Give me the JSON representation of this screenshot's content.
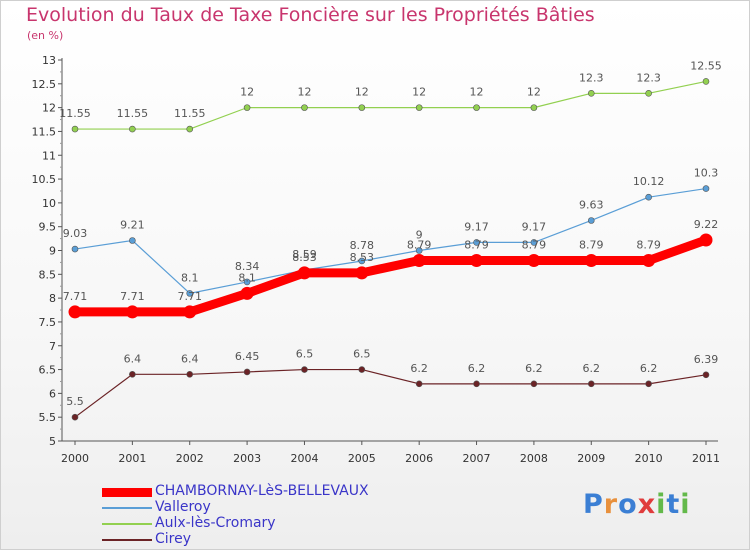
{
  "title": "Evolution du Taux de Taxe Foncière sur les Propriétés Bâties",
  "subtitle": "(en %)",
  "chart_data": {
    "type": "line",
    "title": "Evolution du Taux de Taxe Foncière sur les Propriétés Bâties",
    "ylabel": "(en %)",
    "xlabel": "",
    "x": [
      "2000",
      "2001",
      "2002",
      "2003",
      "2004",
      "2005",
      "2006",
      "2007",
      "2008",
      "2009",
      "2010",
      "2011"
    ],
    "ylim": [
      5,
      13
    ],
    "yticks": [
      "5",
      "5.5",
      "6",
      "6.5",
      "7",
      "7.5",
      "8",
      "8.5",
      "9",
      "9.5",
      "10",
      "10.5",
      "11",
      "11.5",
      "12",
      "12.5",
      "13"
    ],
    "grid": false,
    "legend_position": "bottom-left",
    "series": [
      {
        "name": "CHAMBORNAY-LèS-BELLEVAUX",
        "color": "#ff0000",
        "values": [
          7.71,
          7.71,
          7.71,
          8.1,
          8.53,
          8.53,
          8.79,
          8.79,
          8.79,
          8.79,
          8.79,
          9.22
        ],
        "labels": [
          "7.71",
          "7.71",
          "7.71",
          "8.1",
          "8.53",
          "8.53",
          "8.79",
          "8.79",
          "8.79",
          "8.79",
          "8.79",
          "9.22"
        ]
      },
      {
        "name": "Valleroy",
        "color": "#5a9ed6",
        "values": [
          9.03,
          9.21,
          8.1,
          8.34,
          8.59,
          8.78,
          9,
          9.17,
          9.17,
          9.63,
          10.12,
          10.3
        ],
        "labels": [
          "9.03",
          "9.21",
          "8.1",
          "8.34",
          "8.59",
          "8.78",
          "9",
          "9.17",
          "9.17",
          "9.63",
          "10.12",
          "10.3"
        ]
      },
      {
        "name": "Aulx-lès-Cromary",
        "color": "#92d050",
        "values": [
          11.55,
          11.55,
          11.55,
          12,
          12,
          12,
          12,
          12,
          12,
          12.3,
          12.3,
          12.55
        ],
        "labels": [
          "11.55",
          "11.55",
          "11.55",
          "12",
          "12",
          "12",
          "12",
          "12",
          "12",
          "12.3",
          "12.3",
          "12.55"
        ]
      },
      {
        "name": "Cirey",
        "color": "#6b2326",
        "values": [
          5.5,
          6.4,
          6.4,
          6.45,
          6.5,
          6.5,
          6.2,
          6.2,
          6.2,
          6.2,
          6.2,
          6.39
        ],
        "labels": [
          "5.5",
          "6.4",
          "6.4",
          "6.45",
          "6.5",
          "6.5",
          "6.2",
          "6.2",
          "6.2",
          "6.2",
          "6.2",
          "6.39"
        ]
      }
    ]
  },
  "logo": {
    "letters": [
      {
        "char": "P",
        "color": "#3b7fd4"
      },
      {
        "char": "r",
        "color": "#e8903c"
      },
      {
        "char": "o",
        "color": "#3b7fd4"
      },
      {
        "char": "x",
        "color": "#e03c3c"
      },
      {
        "char": "i",
        "color": "#63b94a"
      },
      {
        "char": "t",
        "color": "#3b7fd4"
      },
      {
        "char": "i",
        "color": "#63b94a"
      }
    ]
  }
}
